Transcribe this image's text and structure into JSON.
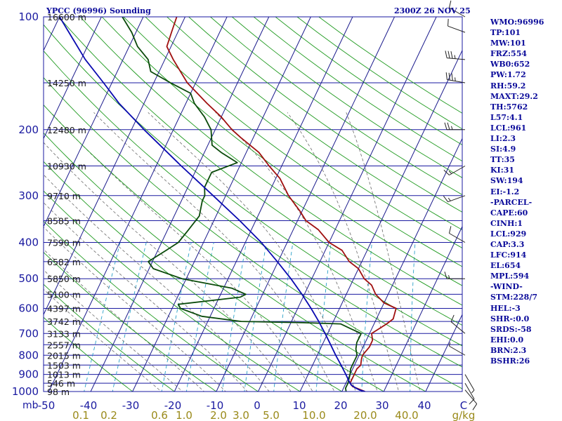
{
  "header": {
    "station": "YPCC (96996) Sounding",
    "time": "2300Z 26 NOV 25"
  },
  "indices": [
    "WMO:96996",
    "TP:101",
    "MW:101",
    "FRZ:554",
    "WB0:652",
    "PW:1.72",
    "RH:59.2",
    "MAXT:29.2",
    "TH:5762",
    "L57:4.1",
    "LCL:961",
    "LI:2.3",
    "SI:4.9",
    "TT:35",
    "KI:31",
    "SW:194",
    "EI:-1.2",
    "-PARCEL-",
    "CAPE:60",
    "CINH:1",
    "LCL:929",
    "CAP:3.3",
    "LFC:914",
    "EL:654",
    "MPL:594",
    "-WIND-",
    "STM:228/7",
    "HEL:-3",
    "SHR-:0.0",
    "SRDS:-58",
    "EHI:0.0",
    "BRN:2.3",
    "BSHR:26"
  ],
  "chart_data": {
    "type": "line",
    "title": "YPCC (96996) Sounding",
    "xlabel": "",
    "ylabel": "mb",
    "xlim": [
      -50,
      50
    ],
    "ylim": [
      1000,
      100
    ],
    "y_scale": "log",
    "pressure_ticks": [
      100,
      200,
      300,
      400,
      500,
      600,
      700,
      800,
      900,
      1000
    ],
    "temperature_ticks": [
      "-50",
      "-40",
      "-30",
      "-20",
      "-10",
      "0",
      "10",
      "20",
      "30",
      "40",
      "C"
    ],
    "mixing_ratio_ticks": [
      "0.1",
      "0.2",
      "0.6",
      "1.0",
      "2.0",
      "3.0",
      "5.0",
      "10.0",
      "20.0",
      "40.0",
      "g/kg"
    ],
    "height_labels": [
      {
        "p": 100,
        "label": "16600 m"
      },
      {
        "p": 150,
        "label": "14250 m"
      },
      {
        "p": 200,
        "label": "12480 m"
      },
      {
        "p": 250,
        "label": "10930 m"
      },
      {
        "p": 300,
        "label": "9710 m"
      },
      {
        "p": 350,
        "label": "8585 m"
      },
      {
        "p": 400,
        "label": "7590 m"
      },
      {
        "p": 450,
        "label": "6582 m"
      },
      {
        "p": 500,
        "label": "5850 m"
      },
      {
        "p": 550,
        "label": "5100 m"
      },
      {
        "p": 600,
        "label": "4397 m"
      },
      {
        "p": 650,
        "label": "3742 m"
      },
      {
        "p": 700,
        "label": "3133 m"
      },
      {
        "p": 750,
        "label": "2557 m"
      },
      {
        "p": 800,
        "label": "2015 m"
      },
      {
        "p": 850,
        "label": "1503 m"
      },
      {
        "p": 900,
        "label": "1013 m"
      },
      {
        "p": 950,
        "label": "546 m"
      },
      {
        "p": 1000,
        "label": "98 m"
      }
    ],
    "series": [
      {
        "id": "temperature",
        "color": "#a01010",
        "points": [
          [
            1000,
            25.5
          ],
          [
            970,
            22
          ],
          [
            950,
            21
          ],
          [
            920,
            21
          ],
          [
            900,
            21
          ],
          [
            870,
            21
          ],
          [
            850,
            21.5
          ],
          [
            820,
            21
          ],
          [
            800,
            20.8
          ],
          [
            760,
            21.5
          ],
          [
            730,
            21.5
          ],
          [
            700,
            20.5
          ],
          [
            660,
            23
          ],
          [
            640,
            24
          ],
          [
            600,
            23.5
          ],
          [
            580,
            20
          ],
          [
            550,
            17
          ],
          [
            520,
            15
          ],
          [
            500,
            12.5
          ],
          [
            470,
            10
          ],
          [
            450,
            7
          ],
          [
            420,
            4
          ],
          [
            400,
            0
          ],
          [
            370,
            -4
          ],
          [
            350,
            -8
          ],
          [
            330,
            -10.5
          ],
          [
            300,
            -15
          ],
          [
            270,
            -19
          ],
          [
            250,
            -23
          ],
          [
            230,
            -27
          ],
          [
            210,
            -33
          ],
          [
            200,
            -36
          ],
          [
            185,
            -40
          ],
          [
            170,
            -45
          ],
          [
            150,
            -52
          ],
          [
            130,
            -58
          ],
          [
            120,
            -61
          ],
          [
            110,
            -61.5
          ],
          [
            100,
            -62
          ]
        ]
      },
      {
        "id": "dewpoint",
        "color": "#0a4a0a",
        "points": [
          [
            1000,
            21
          ],
          [
            980,
            20.5
          ],
          [
            950,
            20.5
          ],
          [
            900,
            20
          ],
          [
            870,
            19.5
          ],
          [
            850,
            19.5
          ],
          [
            820,
            19.5
          ],
          [
            800,
            19.5
          ],
          [
            770,
            18.5
          ],
          [
            740,
            18
          ],
          [
            700,
            18
          ],
          [
            680,
            15
          ],
          [
            660,
            12
          ],
          [
            655,
            3
          ],
          [
            650,
            -12
          ],
          [
            630,
            -22
          ],
          [
            600,
            -28
          ],
          [
            585,
            -29
          ],
          [
            560,
            -15
          ],
          [
            550,
            -14
          ],
          [
            530,
            -18
          ],
          [
            500,
            -31
          ],
          [
            470,
            -39
          ],
          [
            450,
            -41
          ],
          [
            420,
            -38
          ],
          [
            400,
            -36
          ],
          [
            370,
            -35
          ],
          [
            340,
            -34
          ],
          [
            310,
            -35
          ],
          [
            300,
            -35
          ],
          [
            285,
            -36
          ],
          [
            260,
            -36
          ],
          [
            245,
            -31
          ],
          [
            230,
            -36
          ],
          [
            220,
            -39
          ],
          [
            200,
            -41
          ],
          [
            185,
            -44
          ],
          [
            170,
            -48
          ],
          [
            160,
            -50
          ],
          [
            150,
            -56
          ],
          [
            140,
            -62
          ],
          [
            130,
            -64
          ],
          [
            120,
            -68
          ],
          [
            110,
            -71
          ],
          [
            100,
            -75
          ]
        ]
      },
      {
        "id": "parcel",
        "color": "#0a0ab0",
        "points": [
          [
            1000,
            25.5
          ],
          [
            990,
            24
          ],
          [
            980,
            23
          ],
          [
            961,
            21.5
          ],
          [
            940,
            20.6
          ],
          [
            900,
            19
          ],
          [
            850,
            16.8
          ],
          [
            800,
            14.4
          ],
          [
            750,
            12
          ],
          [
            700,
            9.4
          ],
          [
            650,
            6.5
          ],
          [
            600,
            3.2
          ],
          [
            550,
            -0.6
          ],
          [
            500,
            -5
          ],
          [
            450,
            -10.2
          ],
          [
            400,
            -16.2
          ],
          [
            350,
            -23.8
          ],
          [
            300,
            -33
          ],
          [
            250,
            -44
          ],
          [
            200,
            -57
          ],
          [
            170,
            -66
          ],
          [
            150,
            -72
          ],
          [
            130,
            -79
          ],
          [
            110,
            -86
          ],
          [
            100,
            -90
          ]
        ]
      }
    ],
    "winds_kt": [
      {
        "p": 990,
        "dir": 140,
        "spd": 10
      },
      {
        "p": 950,
        "dir": 150,
        "spd": 10
      },
      {
        "p": 900,
        "dir": 150,
        "spd": 5
      },
      {
        "p": 800,
        "dir": 300,
        "spd": 5
      },
      {
        "p": 700,
        "dir": 310,
        "spd": 10
      },
      {
        "p": 500,
        "dir": 270,
        "spd": 15
      },
      {
        "p": 400,
        "dir": 300,
        "spd": 10
      },
      {
        "p": 300,
        "dir": 250,
        "spd": 15
      },
      {
        "p": 250,
        "dir": 240,
        "spd": 15
      },
      {
        "p": 200,
        "dir": 270,
        "spd": 25
      },
      {
        "p": 150,
        "dir": 280,
        "spd": 35
      },
      {
        "p": 130,
        "dir": 275,
        "spd": 35
      },
      {
        "p": 110,
        "dir": 290,
        "spd": 10
      },
      {
        "p": 100,
        "dir": 300,
        "spd": 10
      }
    ],
    "grid": true
  }
}
